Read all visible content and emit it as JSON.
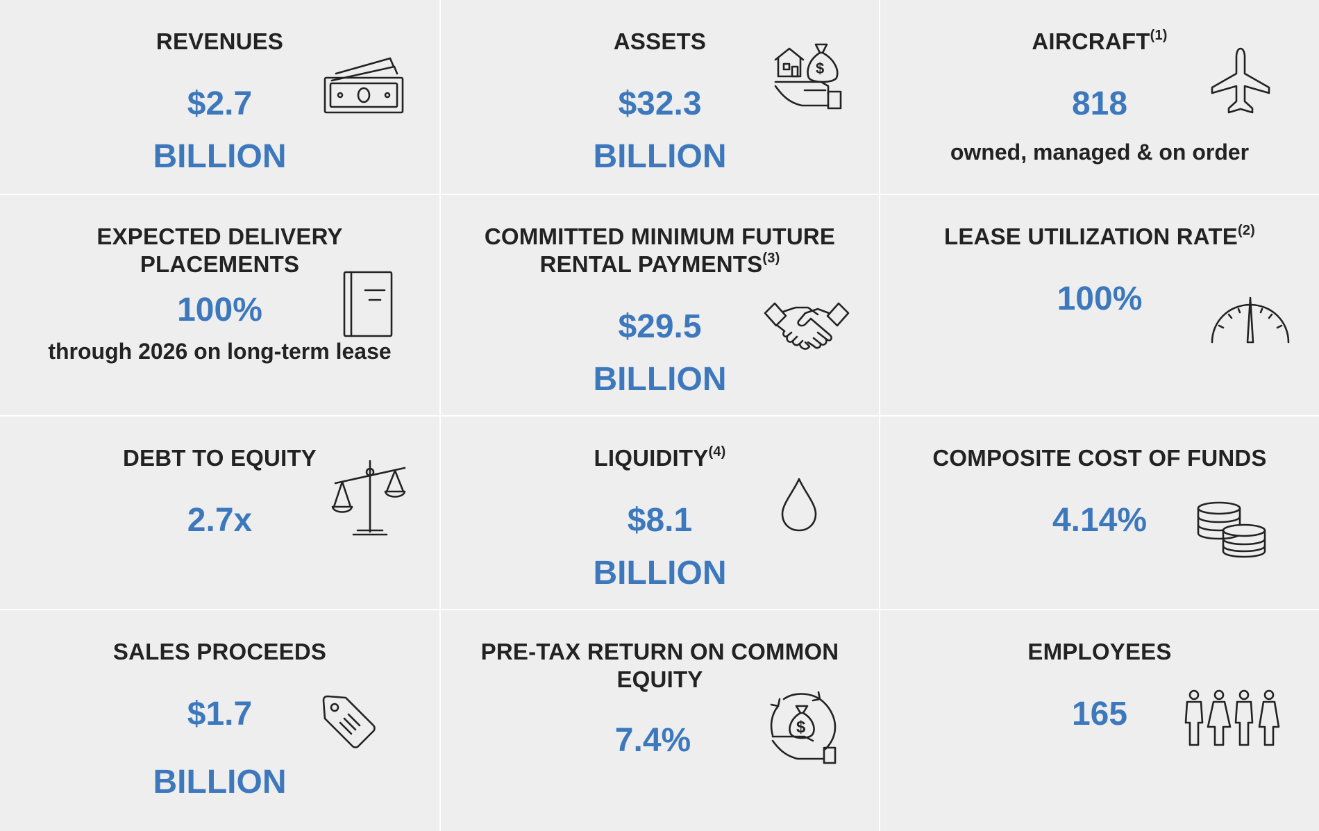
{
  "metrics": {
    "revenues": {
      "title": "REVENUES",
      "value": "$2.7",
      "unit": "BILLION"
    },
    "assets": {
      "title": "ASSETS",
      "value": "$32.3",
      "unit": "BILLION"
    },
    "aircraft": {
      "title": "AIRCRAFT",
      "footnote": "(1)",
      "value": "818",
      "note": "owned, managed & on order"
    },
    "expected_delivery": {
      "title_line1": "EXPECTED DELIVERY",
      "title_line2": "PLACEMENTS",
      "value": "100%",
      "note": "through 2026 on long-term lease"
    },
    "committed_payments": {
      "title_line1": "COMMITTED MINIMUM FUTURE",
      "title_line2": "RENTAL PAYMENTS",
      "footnote": "(3)",
      "value": "$29.5",
      "unit": "BILLION"
    },
    "lease_utilization": {
      "title": "LEASE UTILIZATION RATE",
      "footnote": "(2)",
      "value": "100%"
    },
    "debt_to_equity": {
      "title": "DEBT TO EQUITY",
      "value": "2.7x"
    },
    "liquidity": {
      "title": "LIQUIDITY",
      "footnote": "(4)",
      "value": "$8.1",
      "unit": "BILLION"
    },
    "cost_of_funds": {
      "title": "COMPOSITE COST OF FUNDS",
      "value": "4.14%"
    },
    "sales_proceeds": {
      "title": "SALES PROCEEDS",
      "value": "$1.7",
      "unit": "BILLION"
    },
    "pretax_return": {
      "title_line1": "PRE-TAX RETURN ON COMMON",
      "title_line2": "EQUITY",
      "value": "7.4%"
    },
    "employees": {
      "title": "EMPLOYEES",
      "value": "165"
    }
  },
  "icons": {
    "revenues": "money-bills-icon",
    "assets": "hand-house-money-bag-icon",
    "aircraft": "airplane-icon",
    "expected_delivery": "book-icon",
    "committed_payments": "handshake-icon",
    "lease_utilization": "gauge-icon",
    "debt_to_equity": "balance-scale-icon",
    "liquidity": "water-drop-icon",
    "cost_of_funds": "coin-stacks-icon",
    "sales_proceeds": "price-tag-icon",
    "pretax_return": "money-cycle-hand-icon",
    "employees": "people-group-icon",
    "currency_symbol": "$"
  },
  "colors": {
    "background": "#eeeeee",
    "value_blue": "#3d78bd",
    "text_dark": "#222222",
    "divider": "#ffffff"
  }
}
